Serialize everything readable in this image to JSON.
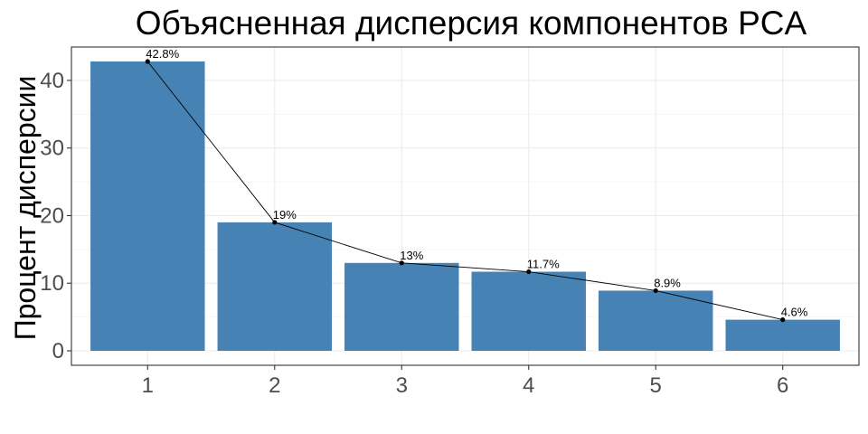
{
  "chart_data": {
    "type": "bar",
    "title": "Объясненная дисперсия компонентов PCA",
    "xlabel": "",
    "ylabel": "Процент дисперсии",
    "categories": [
      "1",
      "2",
      "3",
      "4",
      "5",
      "6"
    ],
    "values": [
      42.8,
      19,
      13,
      11.7,
      8.9,
      4.6
    ],
    "data_labels": [
      "42.8%",
      "19%",
      "13%",
      "11.7%",
      "8.9%",
      "4.6%"
    ],
    "overlay": "line with points connecting bar tops",
    "y_ticks": [
      "0",
      "10",
      "20",
      "30",
      "40"
    ],
    "y_tick_values": [
      0,
      10,
      20,
      30,
      40
    ],
    "ylim": [
      -2.14,
      44.94
    ],
    "grid": true,
    "legend": "none",
    "bar_color": "#4682b4",
    "line_color": "#000000"
  }
}
